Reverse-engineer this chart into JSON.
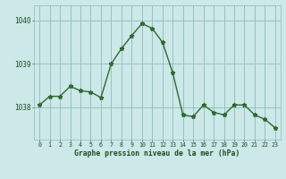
{
  "x": [
    0,
    1,
    2,
    3,
    4,
    5,
    6,
    7,
    8,
    9,
    10,
    11,
    12,
    13,
    14,
    15,
    16,
    17,
    18,
    19,
    20,
    21,
    22,
    23
  ],
  "y": [
    1038.05,
    1038.25,
    1038.25,
    1038.48,
    1038.38,
    1038.35,
    1038.22,
    1039.0,
    1039.35,
    1039.65,
    1039.93,
    1039.82,
    1039.5,
    1038.8,
    1037.82,
    1037.78,
    1038.05,
    1037.88,
    1037.82,
    1038.05,
    1038.05,
    1037.82,
    1037.72,
    1037.52
  ],
  "line_color": "#2d6a2d",
  "marker": "*",
  "marker_size": 3.5,
  "bg_color": "#cce8e8",
  "grid_color": "#8cbcbc",
  "xlabel": "Graphe pression niveau de la mer (hPa)",
  "xlabel_color": "#1a4d1a",
  "tick_color": "#1a4d1a",
  "ytick_labels": [
    "1038",
    "1039",
    "1040"
  ],
  "ytick_values": [
    1038,
    1039,
    1040
  ],
  "ylim": [
    1037.25,
    1040.35
  ],
  "xlim": [
    -0.5,
    23.5
  ],
  "xtick_labels": [
    "0",
    "1",
    "2",
    "3",
    "4",
    "5",
    "6",
    "7",
    "8",
    "9",
    "10",
    "11",
    "12",
    "13",
    "14",
    "15",
    "16",
    "17",
    "18",
    "19",
    "20",
    "21",
    "22",
    "23"
  ]
}
